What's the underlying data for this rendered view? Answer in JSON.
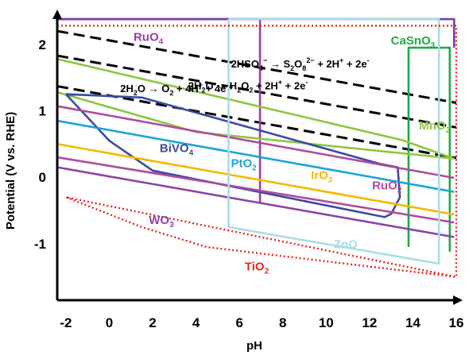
{
  "chart_data": {
    "type": "line",
    "title": "",
    "xlabel": "pH",
    "ylabel": "Potential (V vs. RHE)",
    "xlim": [
      -2.4,
      16
    ],
    "ylim": [
      -1.85,
      2.5
    ],
    "xticks": [
      "-2",
      "0",
      "2",
      "4",
      "6",
      "8",
      "10",
      "12",
      "14",
      "16"
    ],
    "xtick_values": [
      -2,
      0,
      2,
      4,
      6,
      8,
      10,
      12,
      14,
      16
    ],
    "yticks": [
      "2",
      "1",
      "0",
      "-1"
    ],
    "ytick_values": [
      2,
      1,
      0,
      -1
    ],
    "grid": false,
    "dashed_lines": [
      {
        "name": "2HSO4- -> S2O8 2- + 2H+ + 2e-",
        "x": [
          -2.4,
          16
        ],
        "y": [
          2.2,
          1.12
        ],
        "color": "#000000"
      },
      {
        "name": "2H2O -> H2O2 + 2H+ + 2e-",
        "x": [
          -2.4,
          16
        ],
        "y": [
          1.83,
          0.75
        ],
        "color": "#000000"
      },
      {
        "name": "2H2O -> O2 + 4H+ + 4e-",
        "x": [
          -2.4,
          16
        ],
        "y": [
          1.37,
          0.29
        ],
        "color": "#000000"
      }
    ],
    "series": [
      {
        "name": "RuO4",
        "color": "#a03ca0",
        "x": [
          -2.4,
          6.95,
          6.95,
          6.95
        ],
        "y": [
          2.38,
          2.38,
          2.38,
          -0.4
        ]
      },
      {
        "name": "CaSnO3",
        "color": "#22a845",
        "x": [
          13.8,
          13.8,
          15.7,
          15.7
        ],
        "y": [
          -1.05,
          1.95,
          1.95,
          -1.12
        ]
      },
      {
        "name": "CaSnO3 frame",
        "color": "#7a3ab0",
        "x": [
          -2.4,
          15.9,
          15.9
        ],
        "y": [
          2.38,
          2.38,
          1.95
        ]
      },
      {
        "name": "MnO2",
        "color": "#8cc63e",
        "x": [
          -2.4,
          13.5,
          15.9
        ],
        "y": [
          1.78,
          0.56,
          0.28
        ]
      },
      {
        "name": "MnO2 lower",
        "color": "#8cc63e",
        "x": [
          -2.4,
          4.0,
          15.9
        ],
        "y": [
          1.28,
          0.68,
          0.28
        ]
      },
      {
        "name": "BiVO4",
        "color": "#3c4aa0",
        "x": [
          -2.0,
          1.5,
          12.5,
          13.3,
          13.4,
          13.0,
          12.7,
          2.0,
          0.0,
          -2.0
        ],
        "y": [
          1.25,
          1.2,
          0.2,
          0.15,
          -0.3,
          -0.55,
          -0.6,
          0.1,
          0.55,
          1.25
        ]
      },
      {
        "name": "PtO2",
        "color": "#1aa3dd",
        "x": [
          -2.4,
          15.9
        ],
        "y": [
          0.85,
          -0.22
        ]
      },
      {
        "name": "IrO2",
        "color": "#f5b800",
        "x": [
          -2.4,
          15.9
        ],
        "y": [
          0.5,
          -0.56
        ]
      },
      {
        "name": "RuO2",
        "color": "#b04aa0",
        "x": [
          -2.4,
          15.9
        ],
        "y": [
          1.07,
          -0.01
        ]
      },
      {
        "name": "RuO2 lower",
        "color": "#b04aa0",
        "x": [
          -2.4,
          15.9
        ],
        "y": [
          0.3,
          -0.68
        ]
      },
      {
        "name": "WO3",
        "color": "#8c44a8",
        "x": [
          -2.4,
          15.9
        ],
        "y": [
          0.15,
          -0.9
        ]
      },
      {
        "name": "ZnO",
        "color": "#a8dde8",
        "x": [
          5.5,
          5.5,
          15.2,
          15.2,
          5.5
        ],
        "y": [
          2.38,
          -0.75,
          -1.3,
          2.38,
          2.38
        ]
      },
      {
        "name": "TiO2",
        "color": "#e8241c",
        "dotted": true,
        "x": [
          -2.4,
          16.0,
          16.0,
          -2.0,
          -2.0,
          1.5,
          4.5,
          16.0
        ],
        "y": [
          2.28,
          2.28,
          -1.5,
          -0.3,
          -0.3,
          -0.75,
          -1.05,
          -1.5
        ]
      }
    ],
    "labels": [
      {
        "text": "RuO4",
        "main": "RuO",
        "sub": "4",
        "color": "#a03ca0",
        "x": 1.8,
        "y": 2.05
      },
      {
        "text": "CaSnO3",
        "main": "CaSnO",
        "sub": "3",
        "color": "#22a845",
        "x": 14.0,
        "y": 2.0
      },
      {
        "text": "2HSO4- -> S2O8 2- + 2H+ + 2e-",
        "color": "#000000",
        "x": 8.8,
        "y": 1.65,
        "rich": "sulfate"
      },
      {
        "text": "2H2O -> H2O2 + 2H+ + 2e-",
        "color": "#000000",
        "x": 6.4,
        "y": 1.32,
        "rich": "peroxide"
      },
      {
        "text": "2H2O -> O2 + 4H+ + 4e-",
        "color": "#000000",
        "x": 3.0,
        "y": 1.28,
        "rich": "oxygen"
      },
      {
        "text": "MnO2",
        "main": "MnO",
        "sub": "2",
        "color": "#8cc63e",
        "x": 15.0,
        "y": 0.72
      },
      {
        "text": "BiVO4",
        "main": "BiVO",
        "sub": "4",
        "color": "#3c4aa0",
        "x": 3.1,
        "y": 0.38
      },
      {
        "text": "PtO2",
        "main": "PtO",
        "sub": "2",
        "color": "#1aa3dd",
        "x": 6.2,
        "y": 0.15
      },
      {
        "text": "IrO2",
        "main": "IrO",
        "sub": "2",
        "color": "#f5b800",
        "x": 9.8,
        "y": -0.03
      },
      {
        "text": "RuO2",
        "main": "RuO",
        "sub": "2",
        "color": "#b04aa0",
        "x": 12.8,
        "y": -0.18
      },
      {
        "text": "WO3",
        "main": "WO",
        "sub": "3",
        "color": "#8c44a8",
        "x": 2.4,
        "y": -0.7
      },
      {
        "text": "ZnO",
        "main": "ZnO",
        "sub": "",
        "color": "#a8dde8",
        "x": 10.9,
        "y": -1.07
      },
      {
        "text": "TiO2",
        "main": "TiO",
        "sub": "2",
        "color": "#e8241c",
        "x": 6.8,
        "y": -1.4
      }
    ]
  }
}
